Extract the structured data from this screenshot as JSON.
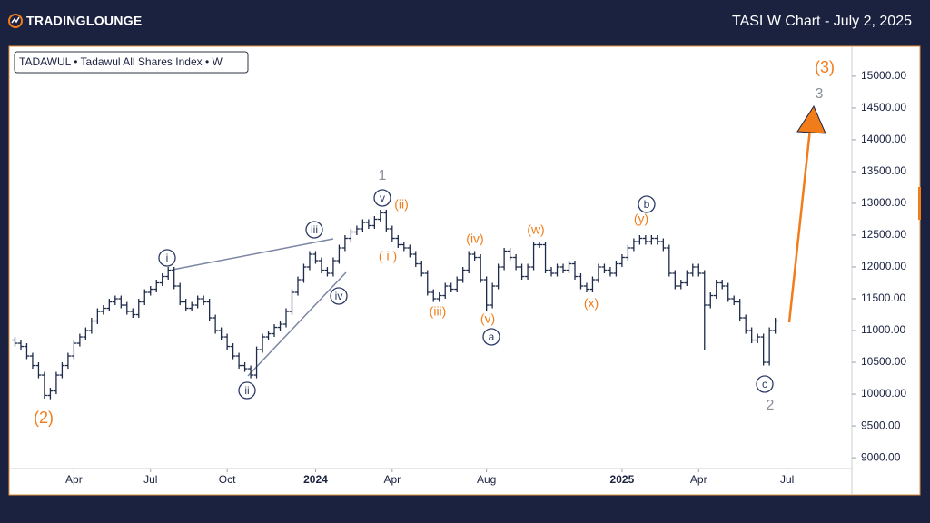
{
  "header": {
    "logo": "TradingLounge",
    "title": "TASI W Chart - July 2, 2025"
  },
  "chart_data": {
    "type": "ohlc",
    "legend": "TADAWUL • Tadawul All Shares Index • W",
    "color": "#1e2a4a",
    "xlim": [
      0,
      143
    ],
    "xticks": [
      {
        "value": 11,
        "label": "Apr"
      },
      {
        "value": 24,
        "label": "Jul"
      },
      {
        "value": 37,
        "label": "Oct"
      },
      {
        "value": 52,
        "label": "2024"
      },
      {
        "value": 65,
        "label": "Apr"
      },
      {
        "value": 81,
        "label": "Aug"
      },
      {
        "value": 104,
        "label": "2025"
      },
      {
        "value": 117,
        "label": "Apr"
      },
      {
        "value": 132,
        "label": "Jul"
      }
    ],
    "ylim": [
      8830,
      15470
    ],
    "yticks": [
      {
        "value": 9000,
        "label": "9000.00"
      },
      {
        "value": 9500,
        "label": "9500.00"
      },
      {
        "value": 10000,
        "label": "10000.00"
      },
      {
        "value": 10500,
        "label": "10500.00"
      },
      {
        "value": 11000,
        "label": "11000.00"
      },
      {
        "value": 11500,
        "label": "11500.00"
      },
      {
        "value": 12000,
        "label": "12000.00"
      },
      {
        "value": 12500,
        "label": "12500.00"
      },
      {
        "value": 13000,
        "label": "13000.00"
      },
      {
        "value": 13500,
        "label": "13500.00"
      },
      {
        "value": 14000,
        "label": "14000.00"
      },
      {
        "value": 14500,
        "label": "14500.00"
      },
      {
        "value": 15000,
        "label": "15000.00"
      }
    ],
    "x": [
      1,
      2,
      3,
      4,
      5,
      6,
      7,
      8,
      9,
      10,
      11,
      12,
      13,
      14,
      15,
      16,
      17,
      18,
      19,
      20,
      21,
      22,
      23,
      24,
      25,
      26,
      27,
      28,
      29,
      30,
      31,
      32,
      33,
      34,
      35,
      36,
      37,
      38,
      39,
      40,
      41,
      42,
      43,
      44,
      45,
      46,
      47,
      48,
      49,
      50,
      51,
      52,
      53,
      54,
      55,
      56,
      57,
      58,
      59,
      60,
      61,
      62,
      63,
      64,
      65,
      66,
      67,
      68,
      69,
      70,
      71,
      72,
      73,
      74,
      75,
      76,
      77,
      78,
      79,
      80,
      81,
      82,
      83,
      84,
      85,
      86,
      87,
      88,
      89,
      90,
      91,
      92,
      93,
      94,
      95,
      96,
      97,
      98,
      99,
      100,
      101,
      102,
      103,
      104,
      105,
      106,
      107,
      108,
      109,
      110,
      111,
      112,
      113,
      114,
      115,
      116,
      117,
      118,
      119,
      120,
      121,
      122,
      123,
      124,
      125,
      126,
      127,
      128,
      129,
      130
    ],
    "ohlc": [
      [
        10850,
        10900,
        10750,
        10800
      ],
      [
        10800,
        10850,
        10700,
        10750
      ],
      [
        10750,
        10800,
        10550,
        10600
      ],
      [
        10600,
        10650,
        10400,
        10450
      ],
      [
        10450,
        10500,
        10250,
        10300
      ],
      [
        10300,
        10350,
        9930,
        9980
      ],
      [
        9980,
        10100,
        9920,
        10050
      ],
      [
        10050,
        10350,
        10000,
        10300
      ],
      [
        10300,
        10500,
        10250,
        10450
      ],
      [
        10450,
        10650,
        10400,
        10600
      ],
      [
        10600,
        10850,
        10550,
        10800
      ],
      [
        10800,
        10950,
        10750,
        10900
      ],
      [
        10900,
        11050,
        10850,
        11000
      ],
      [
        11000,
        11200,
        10950,
        11150
      ],
      [
        11150,
        11350,
        11100,
        11300
      ],
      [
        11300,
        11400,
        11250,
        11350
      ],
      [
        11350,
        11500,
        11300,
        11450
      ],
      [
        11450,
        11550,
        11400,
        11500
      ],
      [
        11500,
        11550,
        11350,
        11400
      ],
      [
        11400,
        11450,
        11250,
        11300
      ],
      [
        11300,
        11350,
        11200,
        11250
      ],
      [
        11250,
        11500,
        11200,
        11450
      ],
      [
        11450,
        11650,
        11400,
        11600
      ],
      [
        11600,
        11700,
        11550,
        11650
      ],
      [
        11650,
        11800,
        11600,
        11750
      ],
      [
        11750,
        11900,
        11700,
        11850
      ],
      [
        11850,
        12000,
        11800,
        11950
      ],
      [
        11950,
        12000,
        11650,
        11700
      ],
      [
        11700,
        11750,
        11400,
        11450
      ],
      [
        11450,
        11500,
        11300,
        11350
      ],
      [
        11350,
        11450,
        11300,
        11400
      ],
      [
        11400,
        11550,
        11350,
        11500
      ],
      [
        11500,
        11550,
        11400,
        11450
      ],
      [
        11450,
        11500,
        11150,
        11200
      ],
      [
        11200,
        11250,
        10950,
        11000
      ],
      [
        11000,
        11050,
        10850,
        10900
      ],
      [
        10900,
        10950,
        10700,
        10750
      ],
      [
        10750,
        10800,
        10550,
        10600
      ],
      [
        10600,
        10650,
        10400,
        10450
      ],
      [
        10450,
        10500,
        10350,
        10400
      ],
      [
        10400,
        10450,
        10250,
        10300
      ],
      [
        10300,
        10750,
        10250,
        10700
      ],
      [
        10700,
        10950,
        10650,
        10900
      ],
      [
        10900,
        11000,
        10850,
        10950
      ],
      [
        10950,
        11100,
        10900,
        11050
      ],
      [
        11050,
        11150,
        11000,
        11100
      ],
      [
        11100,
        11350,
        11050,
        11300
      ],
      [
        11300,
        11650,
        11250,
        11600
      ],
      [
        11600,
        11850,
        11550,
        11800
      ],
      [
        11800,
        12050,
        11750,
        12000
      ],
      [
        12000,
        12250,
        11950,
        12200
      ],
      [
        12200,
        12250,
        12050,
        12100
      ],
      [
        12100,
        12150,
        11900,
        11950
      ],
      [
        11950,
        12000,
        11850,
        11900
      ],
      [
        11900,
        12150,
        11850,
        12100
      ],
      [
        12100,
        12350,
        12050,
        12300
      ],
      [
        12300,
        12500,
        12250,
        12450
      ],
      [
        12450,
        12600,
        12400,
        12550
      ],
      [
        12550,
        12650,
        12500,
        12600
      ],
      [
        12600,
        12750,
        12550,
        12700
      ],
      [
        12700,
        12750,
        12600,
        12650
      ],
      [
        12650,
        12800,
        12600,
        12750
      ],
      [
        12750,
        12900,
        12700,
        12850
      ],
      [
        12850,
        12900,
        12550,
        12600
      ],
      [
        12600,
        12650,
        12400,
        12450
      ],
      [
        12450,
        12500,
        12300,
        12350
      ],
      [
        12350,
        12400,
        12250,
        12300
      ],
      [
        12300,
        12350,
        12150,
        12200
      ],
      [
        12200,
        12250,
        12000,
        12050
      ],
      [
        12050,
        12100,
        11850,
        11900
      ],
      [
        11900,
        11950,
        11550,
        11600
      ],
      [
        11600,
        11650,
        11450,
        11500
      ],
      [
        11500,
        11600,
        11450,
        11550
      ],
      [
        11550,
        11750,
        11500,
        11700
      ],
      [
        11700,
        11750,
        11600,
        11650
      ],
      [
        11650,
        11850,
        11600,
        11800
      ],
      [
        11800,
        12000,
        11750,
        11950
      ],
      [
        11950,
        12250,
        11900,
        12200
      ],
      [
        12200,
        12250,
        12100,
        12150
      ],
      [
        12150,
        12200,
        11750,
        11800
      ],
      [
        11800,
        11850,
        11300,
        11400
      ],
      [
        11400,
        11750,
        11350,
        11700
      ],
      [
        11700,
        12050,
        11650,
        12000
      ],
      [
        12000,
        12300,
        11950,
        12250
      ],
      [
        12250,
        12300,
        12100,
        12150
      ],
      [
        12150,
        12200,
        11950,
        12000
      ],
      [
        12000,
        12050,
        11800,
        11850
      ],
      [
        11850,
        12050,
        11800,
        12000
      ],
      [
        12000,
        12400,
        11950,
        12350
      ],
      [
        12350,
        12400,
        12300,
        12350
      ],
      [
        12350,
        12400,
        11900,
        11950
      ],
      [
        11950,
        12000,
        11850,
        11900
      ],
      [
        11900,
        12050,
        11850,
        12000
      ],
      [
        12000,
        12050,
        11900,
        11950
      ],
      [
        11950,
        12100,
        11900,
        12050
      ],
      [
        12050,
        12100,
        11800,
        11850
      ],
      [
        11850,
        11900,
        11650,
        11700
      ],
      [
        11700,
        11750,
        11600,
        11650
      ],
      [
        11650,
        11850,
        11600,
        11800
      ],
      [
        11800,
        12050,
        11750,
        12000
      ],
      [
        12000,
        12050,
        11900,
        11950
      ],
      [
        11950,
        12000,
        11850,
        11900
      ],
      [
        11900,
        12100,
        11850,
        12050
      ],
      [
        12050,
        12200,
        12000,
        12150
      ],
      [
        12150,
        12350,
        12100,
        12300
      ],
      [
        12300,
        12450,
        12250,
        12400
      ],
      [
        12400,
        12500,
        12350,
        12450
      ],
      [
        12450,
        12500,
        12350,
        12400
      ],
      [
        12400,
        12500,
        12350,
        12450
      ],
      [
        12450,
        12500,
        12350,
        12400
      ],
      [
        12400,
        12450,
        12250,
        12300
      ],
      [
        12300,
        12350,
        11850,
        11900
      ],
      [
        11900,
        11950,
        11650,
        11700
      ],
      [
        11700,
        11800,
        11650,
        11750
      ],
      [
        11750,
        11950,
        11700,
        11900
      ],
      [
        11900,
        12050,
        11850,
        12000
      ],
      [
        12000,
        12050,
        11850,
        11900
      ],
      [
        11900,
        11950,
        10700,
        11400
      ],
      [
        11400,
        11600,
        11350,
        11550
      ],
      [
        11550,
        11800,
        11500,
        11750
      ],
      [
        11750,
        11800,
        11650,
        11700
      ],
      [
        11700,
        11750,
        11450,
        11500
      ],
      [
        11500,
        11550,
        11400,
        11450
      ],
      [
        11450,
        11500,
        11150,
        11200
      ],
      [
        11200,
        11250,
        10950,
        11000
      ],
      [
        11000,
        11050,
        10800,
        10850
      ],
      [
        10850,
        10950,
        10800,
        10900
      ],
      [
        10900,
        10950,
        10450,
        10500
      ],
      [
        10500,
        11050,
        10450,
        11000
      ],
      [
        11000,
        11200,
        10950,
        11150
      ]
    ],
    "annotations": [
      {
        "text": "(2)",
        "color": "#f07d1a"
      },
      {
        "text": "i",
        "color": "#2c3a66"
      },
      {
        "text": "ii",
        "color": "#2c3a66"
      },
      {
        "text": "iii",
        "color": "#2c3a66"
      },
      {
        "text": "iv",
        "color": "#2c3a66"
      },
      {
        "text": "v",
        "color": "#2c3a66"
      },
      {
        "text": "1",
        "color": "#8a8f99"
      },
      {
        "text": "(ii)",
        "color": "#f07d1a"
      },
      {
        "text": "( i )",
        "color": "#f07d1a"
      },
      {
        "text": "(iii)",
        "color": "#f07d1a"
      },
      {
        "text": "(iv)",
        "color": "#f07d1a"
      },
      {
        "text": "(v)",
        "color": "#f07d1a"
      },
      {
        "text": "a",
        "color": "#2c3a66"
      },
      {
        "text": "(w)",
        "color": "#f07d1a"
      },
      {
        "text": "(x)",
        "color": "#f07d1a"
      },
      {
        "text": "(y)",
        "color": "#f07d1a"
      },
      {
        "text": "b",
        "color": "#2c3a66"
      },
      {
        "text": "c",
        "color": "#2c3a66"
      },
      {
        "text": "2",
        "color": "#8a8f99"
      },
      {
        "text": "3",
        "color": "#8a8f99"
      },
      {
        "text": "(3)",
        "color": "#f07d1a"
      }
    ]
  }
}
